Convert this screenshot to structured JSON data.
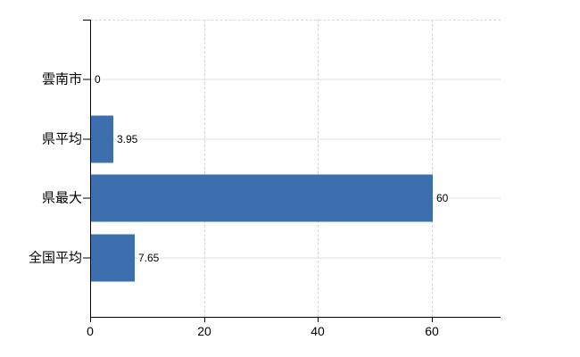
{
  "chart_data": {
    "type": "bar",
    "orientation": "horizontal",
    "title": "",
    "xlabel": "",
    "ylabel": "",
    "categories": [
      "雲南市",
      "県平均",
      "県最大",
      "全国平均"
    ],
    "values": [
      0,
      3.95,
      60,
      7.65
    ],
    "value_labels": [
      "0",
      "3.95",
      "60",
      "7.65"
    ],
    "x_ticks": [
      0,
      20,
      40,
      60
    ],
    "x_tick_labels": [
      "0",
      "20",
      "40",
      "60"
    ],
    "xlim": [
      0,
      72
    ],
    "grid": true,
    "legend": false
  },
  "colors": {
    "bar": "#3d6fae",
    "axis": "#000000",
    "gridline_solid": "#dde2dd",
    "gridline_dashed": "#d6dad6",
    "background": "#ffffff",
    "text": "#000000"
  }
}
